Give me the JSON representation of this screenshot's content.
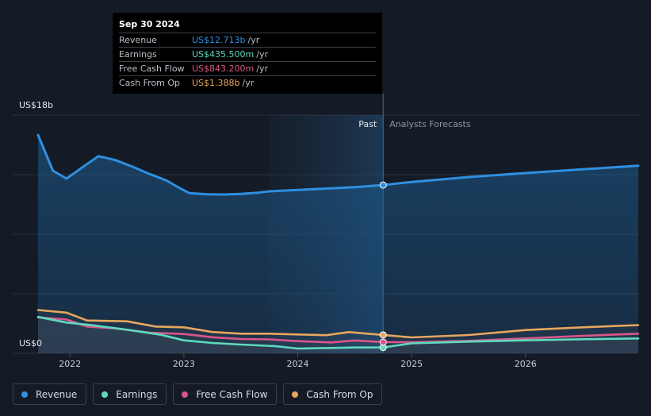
{
  "chart_data": {
    "type": "line",
    "title": "",
    "y_axis": {
      "top_label": "US$18b",
      "bottom_label": "US$0",
      "ylim": [
        0,
        18
      ]
    },
    "x_axis": {
      "tick_labels": [
        "2022",
        "2023",
        "2024",
        "2025",
        "2026"
      ],
      "xlim": [
        2021.72,
        2026.99
      ]
    },
    "sections": {
      "past_label": "Past",
      "forecast_label": "Analysts Forecasts",
      "divider_x": 2024.75,
      "shade_start_x": 2023.75
    },
    "series": [
      {
        "name": "Revenue",
        "color": "#2f8fe0",
        "fill": true,
        "points": [
          [
            2021.72,
            16.5
          ],
          [
            2021.85,
            13.8
          ],
          [
            2021.97,
            13.2
          ],
          [
            2022.1,
            14.0
          ],
          [
            2022.25,
            14.9
          ],
          [
            2022.4,
            14.6
          ],
          [
            2022.55,
            14.1
          ],
          [
            2022.7,
            13.55
          ],
          [
            2022.85,
            13.05
          ],
          [
            2022.97,
            12.45
          ],
          [
            2023.05,
            12.1
          ],
          [
            2023.2,
            12.02
          ],
          [
            2023.35,
            12.0
          ],
          [
            2023.5,
            12.05
          ],
          [
            2023.65,
            12.14
          ],
          [
            2023.75,
            12.24
          ],
          [
            2024.0,
            12.34
          ],
          [
            2024.25,
            12.45
          ],
          [
            2024.5,
            12.56
          ],
          [
            2024.75,
            12.713
          ],
          [
            2025.0,
            12.95
          ],
          [
            2025.5,
            13.32
          ],
          [
            2026.0,
            13.62
          ],
          [
            2026.5,
            13.9
          ],
          [
            2026.99,
            14.17
          ]
        ]
      },
      {
        "name": "Earnings",
        "color": "#5ed9be",
        "fill": false,
        "points": [
          [
            2021.72,
            2.75
          ],
          [
            2021.97,
            2.32
          ],
          [
            2022.2,
            2.12
          ],
          [
            2022.5,
            1.78
          ],
          [
            2022.8,
            1.4
          ],
          [
            2023.0,
            0.98
          ],
          [
            2023.25,
            0.78
          ],
          [
            2023.5,
            0.66
          ],
          [
            2023.8,
            0.54
          ],
          [
            2024.0,
            0.36
          ],
          [
            2024.3,
            0.4
          ],
          [
            2024.5,
            0.44
          ],
          [
            2024.75,
            0.4355
          ],
          [
            2025.0,
            0.75
          ],
          [
            2025.5,
            0.88
          ],
          [
            2026.0,
            0.98
          ],
          [
            2026.5,
            1.06
          ],
          [
            2026.99,
            1.12
          ]
        ]
      },
      {
        "name": "Free Cash Flow",
        "color": "#d9568a",
        "fill": false,
        "points": [
          [
            2021.72,
            2.72
          ],
          [
            2021.97,
            2.55
          ],
          [
            2022.15,
            2.02
          ],
          [
            2022.4,
            1.88
          ],
          [
            2022.7,
            1.56
          ],
          [
            2023.0,
            1.46
          ],
          [
            2023.25,
            1.21
          ],
          [
            2023.5,
            1.08
          ],
          [
            2023.75,
            1.05
          ],
          [
            2024.0,
            0.92
          ],
          [
            2024.3,
            0.82
          ],
          [
            2024.5,
            0.97
          ],
          [
            2024.75,
            0.8432
          ],
          [
            2025.0,
            0.84
          ],
          [
            2025.5,
            0.94
          ],
          [
            2026.0,
            1.12
          ],
          [
            2026.5,
            1.32
          ],
          [
            2026.99,
            1.48
          ]
        ]
      },
      {
        "name": "Cash From Op",
        "color": "#e8a65d",
        "fill": false,
        "points": [
          [
            2021.72,
            3.27
          ],
          [
            2021.97,
            3.07
          ],
          [
            2022.15,
            2.48
          ],
          [
            2022.5,
            2.42
          ],
          [
            2022.75,
            2.02
          ],
          [
            2023.0,
            1.96
          ],
          [
            2023.25,
            1.61
          ],
          [
            2023.5,
            1.48
          ],
          [
            2023.75,
            1.48
          ],
          [
            2024.0,
            1.42
          ],
          [
            2024.25,
            1.37
          ],
          [
            2024.45,
            1.6
          ],
          [
            2024.75,
            1.388
          ],
          [
            2025.0,
            1.2
          ],
          [
            2025.5,
            1.38
          ],
          [
            2026.0,
            1.76
          ],
          [
            2026.5,
            1.96
          ],
          [
            2026.99,
            2.13
          ]
        ]
      }
    ]
  },
  "tooltip": {
    "date": "Sep 30 2024",
    "rows": [
      {
        "label": "Revenue",
        "value": "US$12.713b",
        "unit": "/yr",
        "color": "#2f8fe0"
      },
      {
        "label": "Earnings",
        "value": "US$435.500m",
        "unit": "/yr",
        "color": "#5ed9be"
      },
      {
        "label": "Free Cash Flow",
        "value": "US$843.200m",
        "unit": "/yr",
        "color": "#d9568a"
      },
      {
        "label": "Cash From Op",
        "value": "US$1.388b",
        "unit": "/yr",
        "color": "#e8a65d"
      }
    ]
  },
  "legend": [
    {
      "label": "Revenue",
      "color": "#2f8fe0"
    },
    {
      "label": "Earnings",
      "color": "#5ed9be"
    },
    {
      "label": "Free Cash Flow",
      "color": "#d9568a"
    },
    {
      "label": "Cash From Op",
      "color": "#e8a65d"
    }
  ]
}
